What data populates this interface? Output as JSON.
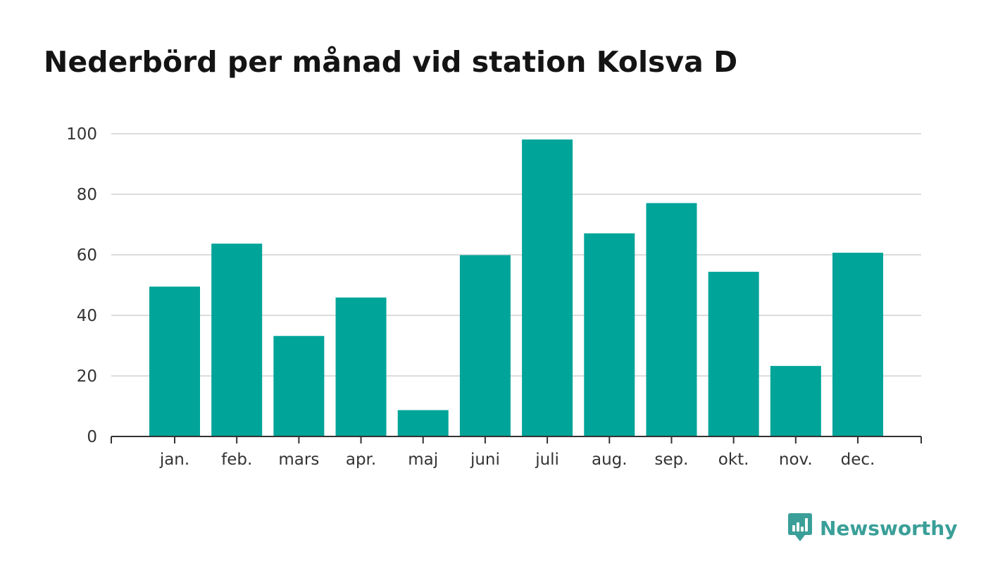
{
  "chart_data": {
    "type": "bar",
    "title": "Nederbörd per månad vid station Kolsva D",
    "categories": [
      "jan.",
      "feb.",
      "mars",
      "apr.",
      "maj",
      "juni",
      "juli",
      "aug.",
      "sep.",
      "okt.",
      "nov.",
      "dec."
    ],
    "values": [
      49.5,
      63.7,
      33.2,
      45.9,
      8.7,
      59.9,
      98.1,
      67.1,
      77.1,
      54.4,
      23.3,
      60.7
    ],
    "xlabel": "",
    "ylabel": "",
    "ylim": [
      0,
      100
    ],
    "yticks": [
      0,
      20,
      40,
      60,
      80,
      100
    ],
    "grid": true,
    "legend": "none",
    "bar_color": "#00a499"
  },
  "brand": {
    "name": "Newsworthy",
    "icon": "newsworthy-logo-icon",
    "color": "#3a9f98"
  }
}
